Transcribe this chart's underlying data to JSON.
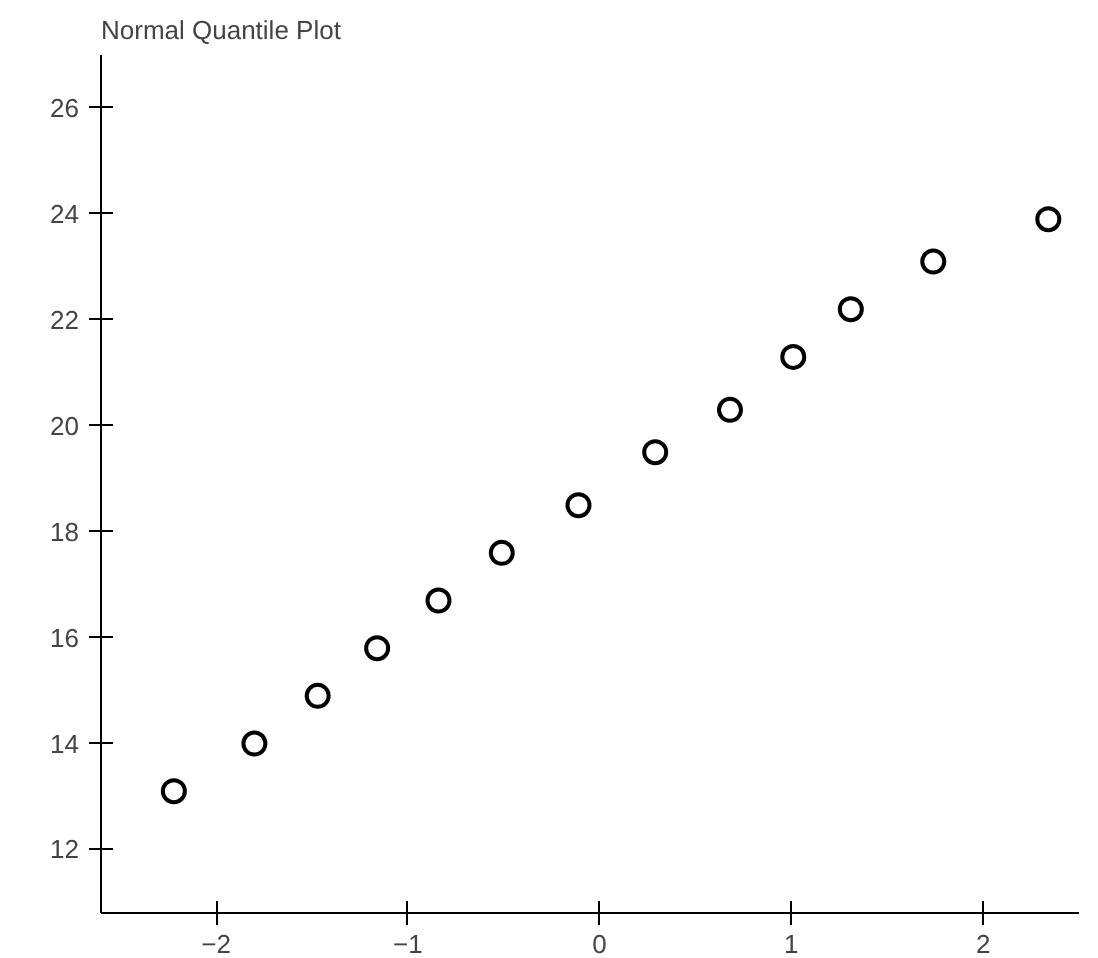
{
  "chart_data": {
    "type": "scatter",
    "title": "Normal Quantile Plot",
    "x": [
      -2.22,
      -1.8,
      -1.47,
      -1.16,
      -0.84,
      -0.51,
      -0.11,
      0.29,
      0.68,
      1.01,
      1.31,
      1.74,
      2.34
    ],
    "series": [
      {
        "color": "#000000",
        "values": [
          13.1,
          14.0,
          14.9,
          15.8,
          16.7,
          17.6,
          18.5,
          19.5,
          20.3,
          21.3,
          22.2,
          23.1,
          23.9
        ]
      }
    ],
    "xlim": [
      -2.6,
      2.5
    ],
    "ylim": [
      10.8,
      27
    ],
    "xticks": [
      -2,
      -1,
      0,
      1,
      2
    ],
    "yticks": [
      12,
      14,
      16,
      18,
      20,
      22,
      24,
      26
    ],
    "marker": "circle",
    "grid": false
  }
}
